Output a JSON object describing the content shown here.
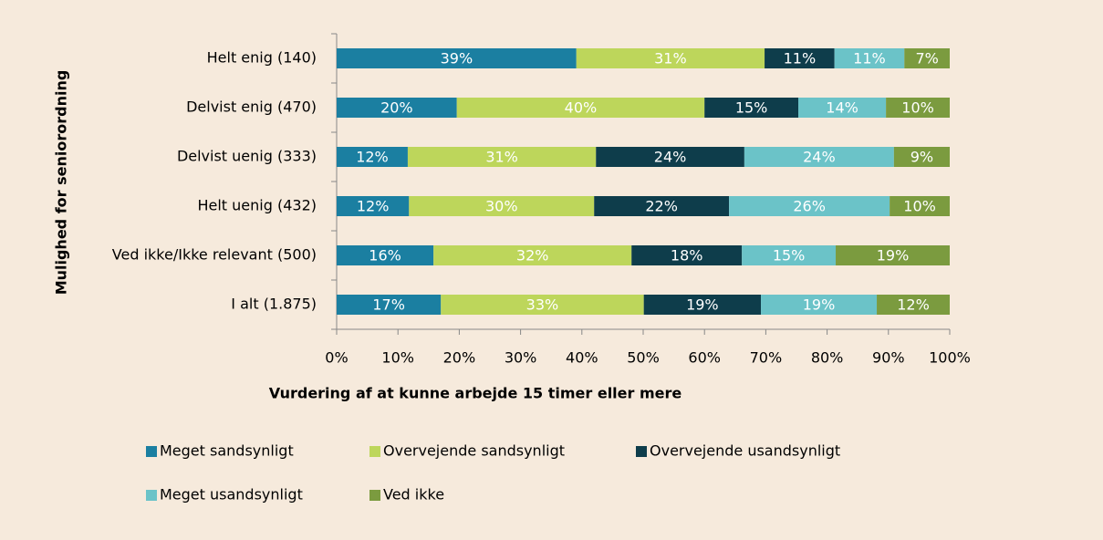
{
  "chart_data": {
    "type": "stacked_barh",
    "xlabel": "Vurdering af at kunne arbejde 15 timer eller mere",
    "ylabel": "Mulighed for seniorordning",
    "categories": [
      "Helt enig (140)",
      "Delvist enig (470)",
      "Delvist uenig (333)",
      "Helt uenig (432)",
      "Ved ikke/Ikke relevant (500)",
      "I alt (1.875)"
    ],
    "series": [
      {
        "name": "Meget sandsynligt",
        "color": "#1b7fa1",
        "values": [
          39.1,
          19.6,
          11.6,
          11.8,
          15.8,
          17.0
        ],
        "value_labels": [
          "39%",
          "20%",
          "12%",
          "12%",
          "16%",
          "17%"
        ]
      },
      {
        "name": "Overvejende sandsynligt",
        "color": "#bdd65b",
        "values": [
          30.7,
          40.4,
          30.7,
          30.2,
          32.3,
          33.1
        ],
        "value_labels": [
          "31%",
          "40%",
          "31%",
          "30%",
          "32%",
          "33%"
        ]
      },
      {
        "name": "Overvejende usandsynligt",
        "color": "#0e3d4b",
        "values": [
          11.4,
          15.3,
          24.2,
          22.0,
          18.0,
          19.1
        ],
        "value_labels": [
          "11%",
          "15%",
          "24%",
          "22%",
          "18%",
          "19%"
        ]
      },
      {
        "name": "Meget usandsynligt",
        "color": "#6bc3c8",
        "values": [
          11.4,
          14.3,
          24.4,
          26.2,
          15.3,
          18.9
        ],
        "value_labels": [
          "11%",
          "14%",
          "24%",
          "26%",
          "15%",
          "19%"
        ]
      },
      {
        "name": "Ved ikke",
        "color": "#7b9b3f",
        "values": [
          7.4,
          10.4,
          9.1,
          9.8,
          18.6,
          11.9
        ],
        "value_labels": [
          "7%",
          "10%",
          "9%",
          "10%",
          "19%",
          "12%"
        ]
      }
    ],
    "xlim": [
      0,
      100
    ],
    "xticks": [
      {
        "value": 0,
        "label": "0%"
      },
      {
        "value": 10,
        "label": "10%"
      },
      {
        "value": 20,
        "label": "20%"
      },
      {
        "value": 30,
        "label": "30%"
      },
      {
        "value": 40,
        "label": "40%"
      },
      {
        "value": 50,
        "label": "50%"
      },
      {
        "value": 60,
        "label": "60%"
      },
      {
        "value": 70,
        "label": "70%"
      },
      {
        "value": 80,
        "label": "80%"
      },
      {
        "value": 90,
        "label": "90%"
      },
      {
        "value": 100,
        "label": "100%"
      }
    ]
  }
}
